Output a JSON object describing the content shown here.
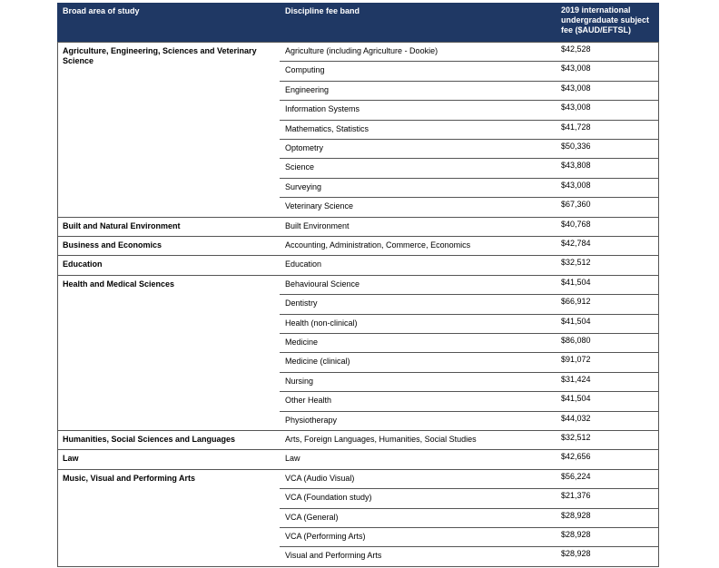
{
  "table": {
    "header": [
      "Broad area of study",
      "Discipline fee band",
      "2019 international undergraduate subject fee ($AUD/EFTSL)"
    ],
    "groups": [
      {
        "area": "Agriculture, Engineering, Sciences and Veterinary Science",
        "rows": [
          [
            "Agriculture (including Agriculture - Dookie)",
            "$42,528"
          ],
          [
            "Computing",
            "$43,008"
          ],
          [
            "Engineering",
            "$43,008"
          ],
          [
            "Information Systems",
            "$43,008"
          ],
          [
            "Mathematics, Statistics",
            "$41,728"
          ],
          [
            "Optometry",
            "$50,336"
          ],
          [
            "Science",
            "$43,808"
          ],
          [
            "Surveying",
            "$43,008"
          ],
          [
            "Veterinary Science",
            "$67,360"
          ]
        ]
      },
      {
        "area": "Built and Natural Environment",
        "rows": [
          [
            "Built Environment",
            "$40,768"
          ]
        ]
      },
      {
        "area": "Business and Economics",
        "rows": [
          [
            "Accounting, Administration, Commerce, Economics",
            "$42,784"
          ]
        ]
      },
      {
        "area": "Education",
        "rows": [
          [
            "Education",
            "$32,512"
          ]
        ]
      },
      {
        "area": "Health and Medical Sciences",
        "rows": [
          [
            "Behavioural Science",
            "$41,504"
          ],
          [
            "Dentistry",
            "$66,912"
          ],
          [
            "Health (non-clinical)",
            "$41,504"
          ],
          [
            "Medicine",
            "$86,080"
          ],
          [
            "Medicine (clinical)",
            "$91,072"
          ],
          [
            "Nursing",
            "$31,424"
          ],
          [
            "Other Health",
            "$41,504"
          ],
          [
            "Physiotherapy",
            "$44,032"
          ]
        ]
      },
      {
        "area": "Humanities, Social Sciences and Languages",
        "rows": [
          [
            "Arts, Foreign Languages, Humanities, Social Studies",
            "$32,512"
          ]
        ]
      },
      {
        "area": "Law",
        "rows": [
          [
            "Law",
            "$42,656"
          ]
        ]
      },
      {
        "area": "Music, Visual and Performing Arts",
        "rows": [
          [
            "VCA (Audio Visual)",
            "$56,224"
          ],
          [
            "VCA (Foundation study)",
            "$21,376"
          ],
          [
            "VCA (General)",
            "$28,928"
          ],
          [
            "VCA (Performing Arts)",
            "$28,928"
          ],
          [
            "Visual and Performing Arts",
            "$28,928"
          ]
        ]
      }
    ]
  }
}
